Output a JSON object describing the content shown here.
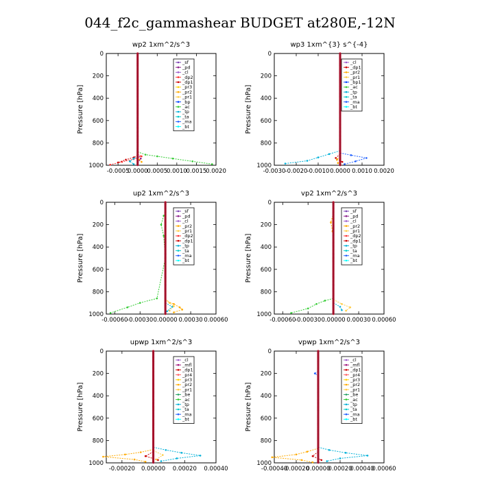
{
  "figure": {
    "title": "044_f2c_gammashear  BUDGET at280E,-12N"
  },
  "colors": {
    "sf": "#7a3fb3",
    "pd": "#8b1c8b",
    "cl": "#9b59c9",
    "dp2": "#ff3030",
    "dp1": "#cc0000",
    "pr3": "#ffd000",
    "pr2": "#ffaa00",
    "pr1": "#ffcc44",
    "bp": "#0044ff",
    "ac": "#33cc33",
    "tp": "#00b0d8",
    "ta": "#00cccc",
    "ma": "#2060ff",
    "bt": "#00ffff",
    "mfl": "#a0147a",
    "pr4": "#ff6060",
    "be": "#1fa060"
  },
  "chart_data": [
    {
      "type": "line",
      "title": "wp2  1xm^2/s^3",
      "ylabel": "Pressure [hPa]",
      "ylim": [
        1000,
        0
      ],
      "xlim": [
        -0.0008,
        0.002
      ],
      "xticks": [
        -0.0005,
        0.0,
        0.0005,
        0.001,
        0.0015,
        0.002
      ],
      "xtick_labels": [
        "-0.0005",
        "0.0000",
        "0.0005",
        "0.0010",
        "0.0015",
        "0.0020"
      ],
      "yticks": [
        0,
        200,
        400,
        600,
        800,
        1000
      ],
      "legend": [
        "_sf",
        "_pd",
        "_cl",
        "_dp2",
        "_dp1",
        "_pr3",
        "_pr2",
        "_pr1",
        "_bp",
        "_ac",
        "_tp",
        "_ta",
        "_ma",
        "_bt"
      ],
      "legend_placement": "upper-right",
      "series": [
        {
          "name": "_ac",
          "color": "#33cc33",
          "points": [
            [
              0,
              880
            ],
            [
              0.0002,
              905
            ],
            [
              0.0005,
              920
            ],
            [
              0.0009,
              940
            ],
            [
              0.0014,
              965
            ],
            [
              0.0019,
              990
            ]
          ]
        },
        {
          "name": "_dp2",
          "color": "#ff3030",
          "points": [
            [
              0,
              900
            ],
            [
              0.0001,
              920
            ],
            [
              -0.0001,
              945
            ],
            [
              -0.0004,
              970
            ],
            [
              -0.0007,
              995
            ]
          ]
        },
        {
          "name": "_dp1",
          "color": "#cc0000",
          "points": [
            [
              0,
              910
            ],
            [
              -0.0001,
              930
            ],
            [
              -0.0003,
              950
            ],
            [
              -0.0005,
              975
            ]
          ]
        },
        {
          "name": "_tp",
          "color": "#00b0d8",
          "points": [
            [
              0,
              920
            ],
            [
              -0.0001,
              940
            ],
            [
              -0.0002,
              965
            ],
            [
              -0.0001,
              990
            ]
          ]
        },
        {
          "name": "_pr2",
          "color": "#ffaa00",
          "points": [
            [
              0,
              930
            ],
            [
              5e-05,
              950
            ],
            [
              0.0001,
              970
            ]
          ]
        },
        {
          "name": "_pd",
          "color": "#8b1c8b",
          "points": [
            [
              0,
              900
            ],
            [
              8e-05,
              940
            ],
            [
              0,
              985
            ]
          ]
        },
        {
          "name": "_cl",
          "color": "#9b59c9",
          "points": [
            [
              0,
              0
            ],
            [
              0,
              1000
            ]
          ]
        }
      ]
    },
    {
      "type": "line",
      "title": "wp3  1xm^{3} s^{-4}",
      "ylabel": "Pressure [hPa]",
      "ylim": [
        1000,
        0
      ],
      "xlim": [
        -0.003,
        0.002
      ],
      "xticks": [
        -0.003,
        -0.002,
        -0.001,
        0.0,
        0.001,
        0.002
      ],
      "xtick_labels": [
        "-0.0030",
        "-0.0020",
        "-0.0010",
        "0.0000",
        "0.0010",
        "0.0020"
      ],
      "yticks": [
        0,
        200,
        400,
        600,
        800,
        1000
      ],
      "legend": [
        "_cl",
        "_dp1",
        "_pr2",
        "_pr1",
        "_bp1",
        "_ac",
        "_tp",
        "_ta",
        "_ma",
        "_bt"
      ],
      "legend_placement": "upper-right",
      "series": [
        {
          "name": "_tp",
          "color": "#00b0d8",
          "points": [
            [
              0,
              870
            ],
            [
              -0.0005,
              900
            ],
            [
              -0.001,
              930
            ],
            [
              -0.0015,
              960
            ],
            [
              -0.0025,
              985
            ]
          ]
        },
        {
          "name": "_ma",
          "color": "#2060ff",
          "points": [
            [
              0,
              890
            ],
            [
              0.0005,
              910
            ],
            [
              0.0012,
              935
            ],
            [
              0.0007,
              965
            ],
            [
              0.0002,
              990
            ]
          ]
        },
        {
          "name": "_dp1",
          "color": "#cc0000",
          "points": [
            [
              0,
              900
            ],
            [
              -0.0002,
              935
            ],
            [
              0.0001,
              970
            ]
          ]
        },
        {
          "name": "_pr2",
          "color": "#ffaa00",
          "points": [
            [
              0,
              920
            ],
            [
              -0.00015,
              950
            ],
            [
              -0.0001,
              980
            ]
          ]
        },
        {
          "name": "_cl",
          "color": "#cc0000",
          "points": [
            [
              0,
              0
            ],
            [
              0,
              1000
            ]
          ]
        }
      ]
    },
    {
      "type": "line",
      "title": "up2  1xm^2/s^3",
      "ylabel": "Pressure [hPa]",
      "ylim": [
        1000,
        0
      ],
      "xlim": [
        -0.0007,
        0.0006
      ],
      "xticks": [
        -0.0006,
        -0.0003,
        0.0,
        0.0003,
        0.0006
      ],
      "xtick_labels": [
        "-0.00060",
        "-0.00030",
        "0.00000",
        "0.00030",
        "0.00060"
      ],
      "yticks": [
        0,
        200,
        400,
        600,
        800,
        1000
      ],
      "legend": [
        "_sf",
        "_pd",
        "_cl",
        "_pr2",
        "_pr1",
        "_dp2",
        "_dp1",
        "_tp",
        "_ta",
        "_ma",
        "_bt"
      ],
      "legend_placement": "upper-right",
      "series": [
        {
          "name": "_dp2",
          "color": "#33cc33",
          "points": [
            [
              -2e-05,
              120
            ],
            [
              -5e-05,
              200
            ],
            [
              -2e-05,
              300
            ],
            [
              0,
              500
            ],
            [
              -0.0001,
              860
            ],
            [
              -0.0003,
              900
            ],
            [
              -0.00045,
              940
            ],
            [
              -0.00065,
              990
            ]
          ]
        },
        {
          "name": "_pr2",
          "color": "#ffaa00",
          "points": [
            [
              0,
              880
            ],
            [
              0.0001,
              910
            ],
            [
              0.00017,
              940
            ],
            [
              0.0002,
              960
            ],
            [
              0.0001,
              985
            ]
          ]
        },
        {
          "name": "_pr1",
          "color": "#ffcc44",
          "points": [
            [
              0,
              860
            ],
            [
              5e-05,
              900
            ],
            [
              0.0001,
              930
            ],
            [
              5e-05,
              970
            ]
          ]
        },
        {
          "name": "_tp",
          "color": "#00b0d8",
          "points": [
            [
              0,
              900
            ],
            [
              8e-05,
              935
            ],
            [
              2e-05,
              975
            ]
          ]
        },
        {
          "name": "_cl",
          "color": "#cc0000",
          "points": [
            [
              0,
              0
            ],
            [
              0,
              1000
            ]
          ]
        }
      ]
    },
    {
      "type": "line",
      "title": "vp2  1xm^2/s^3",
      "ylabel": "Pressure [hPa]",
      "ylim": [
        1000,
        0
      ],
      "xlim": [
        -0.0007,
        0.0006
      ],
      "xticks": [
        -0.0006,
        -0.0003,
        0.0,
        0.0003,
        0.0006
      ],
      "xtick_labels": [
        "-0.00060",
        "-0.00030",
        "0.00000",
        "0.00030",
        "0.00060"
      ],
      "yticks": [
        0,
        200,
        400,
        600,
        800,
        1000
      ],
      "legend": [
        "_sf",
        "_pd",
        "_cl",
        "_pr2",
        "_pr1",
        "_dp2",
        "_dp1",
        "_tp",
        "_ta",
        "_ma",
        "_bt"
      ],
      "legend_placement": "upper-right",
      "series": [
        {
          "name": "_pr2",
          "color": "#ffaa00",
          "points": [
            [
              0,
              100
            ],
            [
              -3e-05,
              180
            ],
            [
              -1e-05,
              260
            ],
            [
              0,
              300
            ]
          ]
        },
        {
          "name": "_dp2",
          "color": "#33cc33",
          "points": [
            [
              0,
              860
            ],
            [
              -0.0001,
              880
            ],
            [
              -0.0002,
              910
            ],
            [
              -0.0003,
              950
            ],
            [
              -0.0005,
              990
            ]
          ]
        },
        {
          "name": "_pr1",
          "color": "#ffcc44",
          "points": [
            [
              0,
              870
            ],
            [
              0.0001,
              910
            ],
            [
              0.0002,
              940
            ],
            [
              0.00015,
              970
            ]
          ]
        },
        {
          "name": "_tp",
          "color": "#00b0d8",
          "points": [
            [
              0,
              900
            ],
            [
              8e-05,
              935
            ],
            [
              0.0001,
              965
            ]
          ]
        },
        {
          "name": "_cl",
          "color": "#cc0000",
          "points": [
            [
              0,
              0
            ],
            [
              0,
              1000
            ]
          ]
        }
      ]
    },
    {
      "type": "line",
      "title": "upwp  1xm^2/s^3",
      "ylabel": "Pressure [hPa]",
      "ylim": [
        1000,
        0
      ],
      "xlim": [
        -0.0003,
        0.0004
      ],
      "xticks": [
        -0.0002,
        0.0,
        0.0002,
        0.0004
      ],
      "xtick_labels": [
        "-0.00020",
        "0.00000",
        "0.00020",
        "0.00040"
      ],
      "yticks": [
        0,
        200,
        400,
        600,
        800,
        1000
      ],
      "legend": [
        "_cl",
        "_mfl",
        "_dp1",
        "_pr4",
        "_pr3",
        "_pr2",
        "_pr1",
        "_be",
        "_ac",
        "_tp",
        "_ta",
        "_ma",
        "_bt"
      ],
      "legend_placement": "upper-right",
      "series": [
        {
          "name": "_tp",
          "color": "#00b0d8",
          "points": [
            [
              0,
              860
            ],
            [
              8e-05,
              885
            ],
            [
              0.00018,
              910
            ],
            [
              0.0003,
              935
            ],
            [
              0.00015,
              960
            ],
            [
              5e-05,
              985
            ]
          ]
        },
        {
          "name": "_pr2",
          "color": "#ffaa00",
          "points": [
            [
              0,
              880
            ],
            [
              -8e-05,
              905
            ],
            [
              -0.00018,
              925
            ],
            [
              -0.00032,
              945
            ],
            [
              -0.00012,
              970
            ],
            [
              -5e-05,
              990
            ]
          ]
        },
        {
          "name": "_dp1",
          "color": "#cc0000",
          "points": [
            [
              0,
              900
            ],
            [
              -5e-05,
              940
            ],
            [
              3e-05,
              975
            ]
          ]
        },
        {
          "name": "_pr1",
          "color": "#ffcc44",
          "points": [
            [
              0,
              890
            ],
            [
              6e-05,
              930
            ],
            [
              2e-05,
              970
            ]
          ]
        },
        {
          "name": "_cl",
          "color": "#9b59c9",
          "points": [
            [
              0,
              0
            ],
            [
              0,
              1000
            ]
          ]
        }
      ]
    },
    {
      "type": "line",
      "title": "vpwp  1xm^2/s^3",
      "ylabel": "Pressure [hPa]",
      "ylim": [
        1000,
        0
      ],
      "xlim": [
        -0.0004,
        0.0006
      ],
      "xticks": [
        -0.0004,
        -0.0002,
        0.0,
        0.0002,
        0.0004,
        0.0006
      ],
      "xtick_labels": [
        "-0.00040",
        "-0.00020",
        "0.00000",
        "0.00020",
        "0.00040",
        "0.00060"
      ],
      "yticks": [
        0,
        200,
        400,
        600,
        800,
        1000
      ],
      "legend": [
        "_cl",
        "_mfl",
        "_dp1",
        "_pr4",
        "_pr3",
        "_pr2",
        "_pr1",
        "_be",
        "_ac",
        "_tp",
        "_ta",
        "_ma",
        "_bt"
      ],
      "legend_placement": "upper-right",
      "series": [
        {
          "name": "_ma",
          "color": "#2060ff",
          "points": [
            [
              0,
              180
            ],
            [
              -3e-05,
              200
            ],
            [
              0,
              220
            ]
          ]
        },
        {
          "name": "_tp",
          "color": "#00b0d8",
          "points": [
            [
              0,
              860
            ],
            [
              0.0001,
              885
            ],
            [
              0.00025,
              910
            ],
            [
              0.00045,
              935
            ],
            [
              0.0002,
              960
            ],
            [
              8e-05,
              985
            ]
          ]
        },
        {
          "name": "_pr2",
          "color": "#ffaa00",
          "points": [
            [
              0,
              870
            ],
            [
              -0.0001,
              900
            ],
            [
              -0.0002,
              925
            ],
            [
              -0.00042,
              950
            ],
            [
              -0.00015,
              975
            ],
            [
              -5e-05,
              995
            ]
          ]
        },
        {
          "name": "_dp1",
          "color": "#cc0000",
          "points": [
            [
              0,
              900
            ],
            [
              -5e-05,
              940
            ],
            [
              3e-05,
              975
            ]
          ]
        },
        {
          "name": "_cl",
          "color": "#9b59c9",
          "points": [
            [
              0,
              0
            ],
            [
              0,
              1000
            ]
          ]
        }
      ]
    }
  ]
}
